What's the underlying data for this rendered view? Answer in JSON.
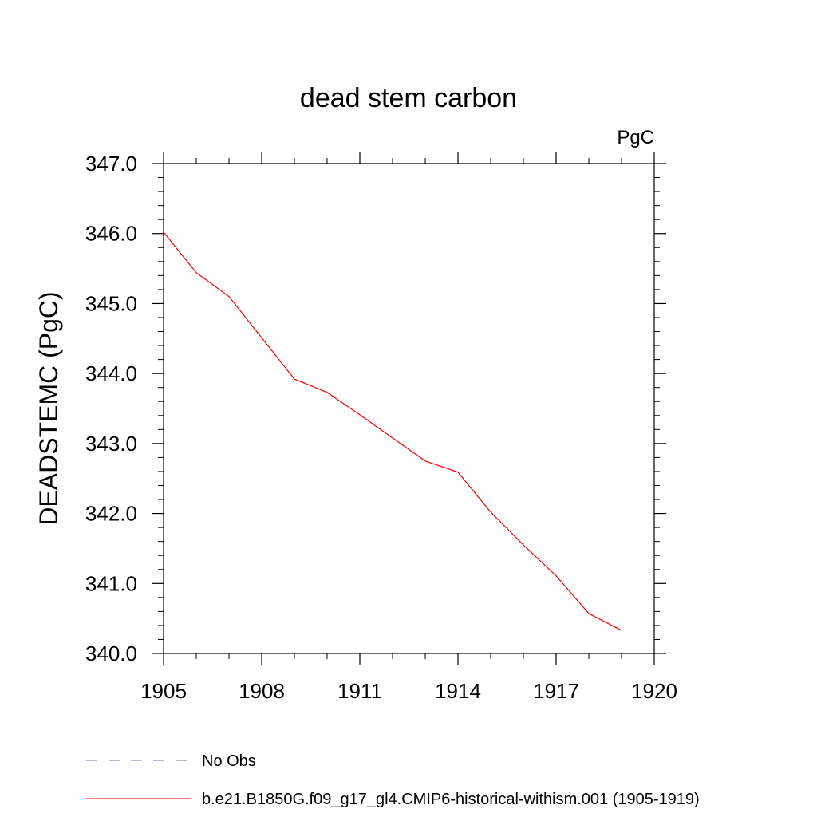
{
  "chart_data": {
    "type": "line",
    "title": "dead stem carbon",
    "units_label": "PgC",
    "ylabel": "DEADSTEMC  (PgC)",
    "xlabel": "",
    "xlim": [
      1905,
      1920
    ],
    "ylim": [
      340.0,
      347.0
    ],
    "x_ticks": [
      1905,
      1908,
      1911,
      1914,
      1917,
      1920
    ],
    "x_tick_labels": [
      "1905",
      "1908",
      "1911",
      "1914",
      "1917",
      "1920"
    ],
    "y_ticks": [
      340.0,
      341.0,
      342.0,
      343.0,
      344.0,
      345.0,
      346.0,
      347.0
    ],
    "y_tick_labels": [
      "340.0",
      "341.0",
      "342.0",
      "343.0",
      "344.0",
      "345.0",
      "346.0",
      "347.0"
    ],
    "grid": false,
    "legend_position": "bottom-left",
    "series": [
      {
        "name": "b.e21.B1850G.f09_g17_gl4.CMIP6-historical-withism.001 (1905-1919)",
        "color": "#ff0000",
        "dash": "solid",
        "x": [
          1905,
          1906,
          1907,
          1908,
          1909,
          1910,
          1911,
          1912,
          1913,
          1914,
          1915,
          1916,
          1917,
          1918,
          1919
        ],
        "y": [
          346.02,
          345.44,
          345.1,
          344.51,
          343.92,
          343.73,
          343.41,
          343.08,
          342.75,
          342.59,
          342.02,
          341.55,
          341.11,
          340.57,
          340.33
        ]
      }
    ],
    "legend": [
      {
        "label": "No Obs",
        "color": "#7b6fb5",
        "dash": "dashed"
      },
      {
        "label": "b.e21.B1850G.f09_g17_gl4.CMIP6-historical-withism.001 (1905-1919)",
        "color": "#ff0000",
        "dash": "solid"
      }
    ]
  }
}
